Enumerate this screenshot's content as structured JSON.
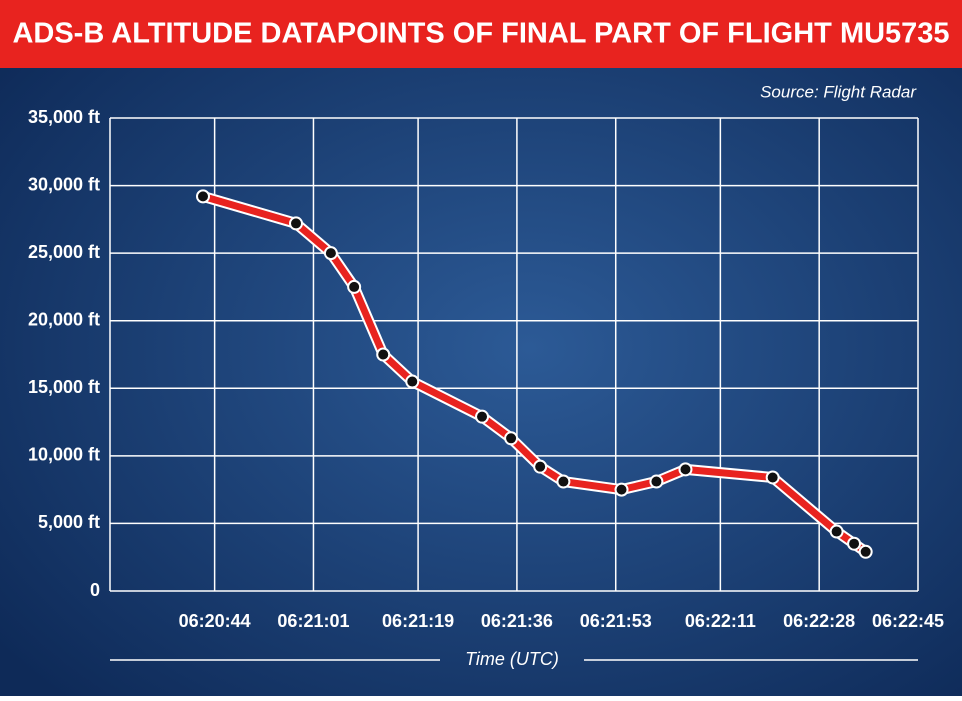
{
  "chart_data": {
    "type": "line",
    "title": "ADS-B ALTITUDE DATAPOINTS OF FINAL PART OF FLIGHT MU5735",
    "source": "Source: Flight Radar",
    "x_label": "Time (UTC)",
    "x": [
      "06:20:42",
      "06:20:58",
      "06:21:04",
      "06:21:08",
      "06:21:13",
      "06:21:18",
      "06:21:30",
      "06:21:35",
      "06:21:40",
      "06:21:44",
      "06:21:54",
      "06:22:00",
      "06:22:05",
      "06:22:20",
      "06:22:31",
      "06:22:34",
      "06:22:36"
    ],
    "series": [
      {
        "color": "#e8231f",
        "values": [
          29200,
          27200,
          25000,
          22500,
          17500,
          15500,
          12900,
          11300,
          9200,
          8100,
          7500,
          8100,
          9000,
          8400,
          4400,
          3500,
          2900
        ]
      }
    ],
    "xlim": [
      "06:20:26",
      "06:22:45"
    ],
    "xticks": [
      "06:20:44",
      "06:21:01",
      "06:21:19",
      "06:21:36",
      "06:21:53",
      "06:22:11",
      "06:22:28",
      "06:22:45"
    ],
    "ylim": [
      0,
      35000
    ],
    "yticks": [
      0,
      {
        "value": 5000,
        "label": "5,000 ft"
      },
      {
        "value": 10000,
        "label": "10,000 ft"
      },
      {
        "value": 15000,
        "label": "15,000 ft"
      },
      {
        "value": 20000,
        "label": "20,000 ft"
      },
      {
        "value": 25000,
        "label": "25,000 ft"
      },
      {
        "value": 30000,
        "label": "30,000 ft"
      },
      {
        "value": 35000,
        "label": "35,000 ft"
      }
    ],
    "grid": true
  }
}
